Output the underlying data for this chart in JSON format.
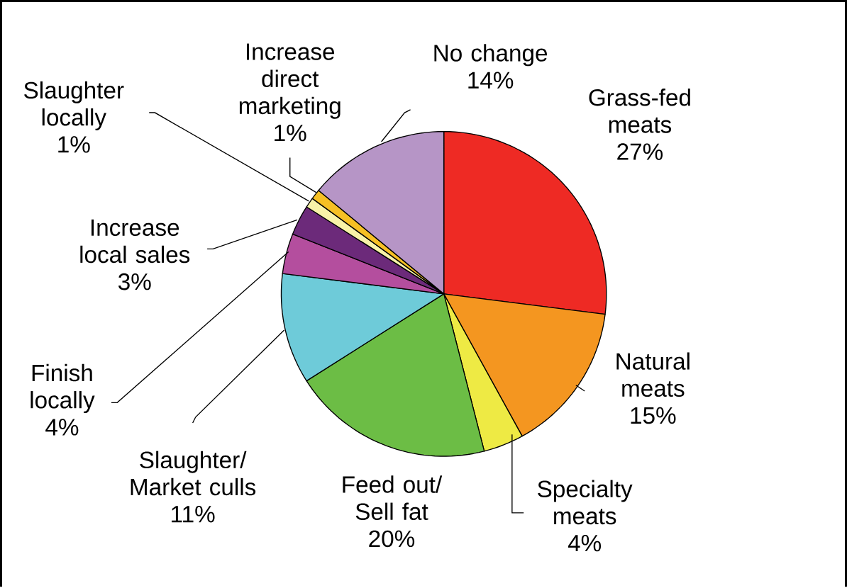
{
  "chart_data": {
    "type": "pie",
    "categories": [
      "Grass-fed meats",
      "Natural meats",
      "Specialty meats",
      "Feed out/ Sell fat",
      "Slaughter/ Market culls",
      "Finish locally",
      "Increase local sales",
      "Slaughter locally",
      "Increase direct marketing",
      "No change"
    ],
    "values": [
      27,
      15,
      4,
      20,
      11,
      4,
      3,
      1,
      1,
      14
    ],
    "value_labels": [
      "27%",
      "15%",
      "4%",
      "20%",
      "11%",
      "4%",
      "3%",
      "1%",
      "1%",
      "14%"
    ],
    "colors": [
      "#ee2a24",
      "#f49620",
      "#eeea44",
      "#6cbd45",
      "#6ecbd9",
      "#b44e9e",
      "#6c2a7a",
      "#f8f3a8",
      "#f6c024",
      "#b695c6"
    ]
  }
}
